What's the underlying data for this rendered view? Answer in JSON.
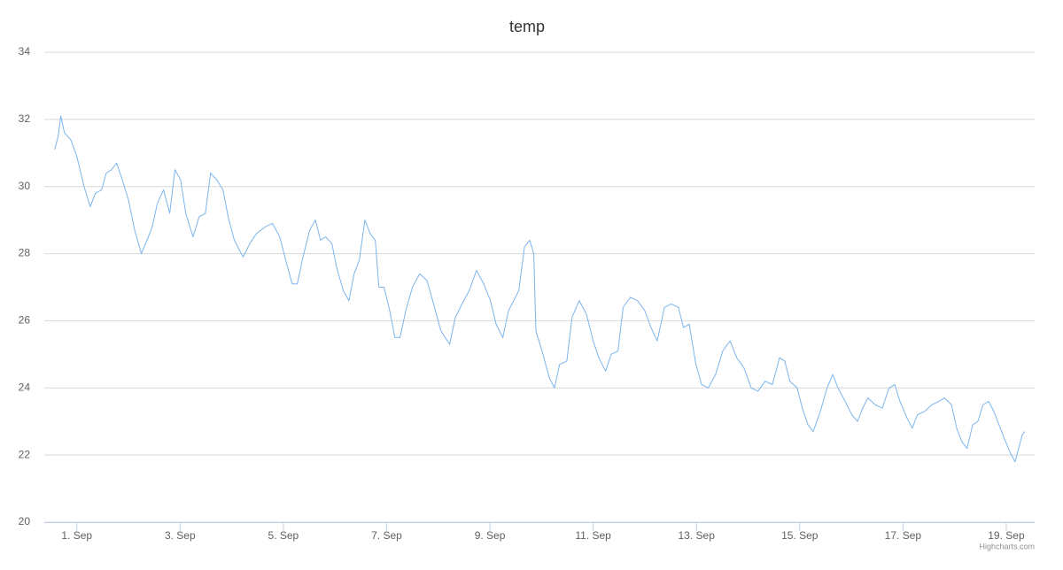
{
  "chart_data": {
    "type": "line",
    "title": "temp",
    "credits": "Highcharts.com",
    "color": "#7cb5ec",
    "grid": true,
    "xlim": [
      0.37,
      19.55
    ],
    "ylim": [
      20,
      34
    ],
    "yticks": [
      20,
      22,
      24,
      26,
      28,
      30,
      32,
      34
    ],
    "xticks": [
      {
        "value": 1,
        "label": "1. Sep"
      },
      {
        "value": 3,
        "label": "3. Sep"
      },
      {
        "value": 5,
        "label": "5. Sep"
      },
      {
        "value": 7,
        "label": "7. Sep"
      },
      {
        "value": 9,
        "label": "9. Sep"
      },
      {
        "value": 11,
        "label": "11. Sep"
      },
      {
        "value": 13,
        "label": "13. Sep"
      },
      {
        "value": 15,
        "label": "15. Sep"
      },
      {
        "value": 17,
        "label": "17. Sep"
      },
      {
        "value": 19,
        "label": "19. Sep"
      }
    ],
    "x": [
      0.57,
      0.64,
      0.69,
      0.76,
      0.88,
      1.0,
      1.14,
      1.26,
      1.36,
      1.48,
      1.57,
      1.67,
      1.77,
      1.88,
      2.0,
      2.12,
      2.25,
      2.36,
      2.46,
      2.56,
      2.68,
      2.8,
      2.9,
      3.01,
      3.11,
      3.25,
      3.37,
      3.49,
      3.59,
      3.71,
      3.83,
      3.93,
      4.05,
      4.22,
      4.35,
      4.48,
      4.65,
      4.79,
      4.93,
      5.03,
      5.17,
      5.27,
      5.38,
      5.51,
      5.62,
      5.72,
      5.82,
      5.94,
      6.03,
      6.16,
      6.27,
      6.37,
      6.47,
      6.58,
      6.68,
      6.78,
      6.85,
      6.95,
      7.06,
      7.16,
      7.26,
      7.37,
      7.5,
      7.64,
      7.78,
      7.91,
      8.05,
      8.22,
      8.33,
      8.46,
      8.6,
      8.74,
      8.88,
      9.01,
      9.12,
      9.25,
      9.36,
      9.46,
      9.56,
      9.67,
      9.77,
      9.85,
      9.89,
      10.01,
      10.15,
      10.25,
      10.35,
      10.49,
      10.59,
      10.73,
      10.87,
      11.0,
      11.11,
      11.24,
      11.35,
      11.48,
      11.58,
      11.72,
      11.86,
      12.0,
      12.12,
      12.24,
      12.38,
      12.51,
      12.65,
      12.75,
      12.86,
      12.99,
      13.1,
      13.23,
      13.37,
      13.51,
      13.65,
      13.78,
      13.92,
      14.06,
      14.19,
      14.33,
      14.47,
      14.61,
      14.71,
      14.81,
      14.95,
      15.05,
      15.16,
      15.26,
      15.4,
      15.53,
      15.64,
      15.74,
      15.88,
      16.01,
      16.12,
      16.22,
      16.32,
      16.46,
      16.6,
      16.73,
      16.84,
      16.94,
      17.08,
      17.18,
      17.28,
      17.42,
      17.56,
      17.7,
      17.8,
      17.94,
      18.04,
      18.14,
      18.24,
      18.35,
      18.45,
      18.55,
      18.66,
      18.76,
      18.86,
      18.96,
      19.07,
      19.17,
      19.24,
      19.31,
      19.36
    ],
    "values": [
      31.1,
      31.5,
      32.1,
      31.6,
      31.4,
      30.9,
      30.0,
      29.4,
      29.8,
      29.9,
      30.4,
      30.5,
      30.7,
      30.2,
      29.6,
      28.7,
      28.0,
      28.4,
      28.8,
      29.5,
      29.9,
      29.2,
      30.5,
      30.2,
      29.2,
      28.5,
      29.1,
      29.2,
      30.4,
      30.2,
      29.9,
      29.1,
      28.4,
      27.9,
      28.3,
      28.6,
      28.8,
      28.9,
      28.5,
      27.9,
      27.1,
      27.1,
      27.9,
      28.7,
      29.0,
      28.4,
      28.5,
      28.3,
      27.6,
      26.9,
      26.6,
      27.4,
      27.8,
      29.0,
      28.6,
      28.4,
      27.0,
      27.0,
      26.3,
      25.5,
      25.5,
      26.3,
      27.0,
      27.4,
      27.2,
      26.5,
      25.7,
      25.3,
      26.1,
      26.5,
      26.9,
      27.5,
      27.1,
      26.6,
      25.9,
      25.5,
      26.3,
      26.6,
      26.9,
      28.2,
      28.4,
      28.0,
      25.7,
      25.1,
      24.3,
      24.0,
      24.7,
      24.8,
      26.1,
      26.6,
      26.2,
      25.4,
      24.9,
      24.5,
      25.0,
      25.1,
      26.4,
      26.7,
      26.6,
      26.3,
      25.8,
      25.4,
      26.4,
      26.5,
      26.4,
      25.8,
      25.9,
      24.7,
      24.1,
      24.0,
      24.4,
      25.1,
      25.4,
      24.9,
      24.6,
      24.0,
      23.9,
      24.2,
      24.1,
      24.9,
      24.8,
      24.2,
      24.0,
      23.4,
      22.9,
      22.7,
      23.3,
      24.0,
      24.4,
      24.0,
      23.6,
      23.2,
      23.0,
      23.4,
      23.7,
      23.5,
      23.4,
      24.0,
      24.1,
      23.6,
      23.1,
      22.8,
      23.2,
      23.3,
      23.5,
      23.6,
      23.7,
      23.5,
      22.8,
      22.4,
      22.2,
      22.9,
      23.0,
      23.5,
      23.6,
      23.3,
      22.9,
      22.5,
      22.1,
      21.8,
      22.2,
      22.6,
      22.7
    ]
  }
}
